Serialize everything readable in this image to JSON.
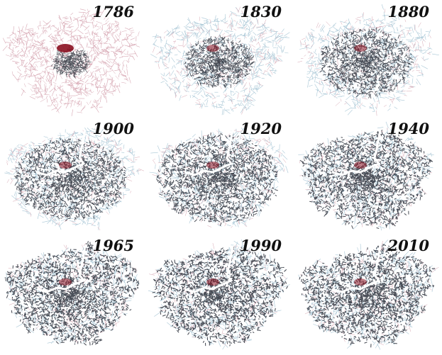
{
  "figure": {
    "panels": [
      {
        "year": "1786",
        "density": 0.15
      },
      {
        "year": "1830",
        "density": 0.35
      },
      {
        "year": "1880",
        "density": 0.5
      },
      {
        "year": "1900",
        "density": 0.62
      },
      {
        "year": "1920",
        "density": 0.7
      },
      {
        "year": "1940",
        "density": 0.8
      },
      {
        "year": "1965",
        "density": 0.88
      },
      {
        "year": "1990",
        "density": 0.94
      },
      {
        "year": "2010",
        "density": 0.97
      }
    ],
    "colors": {
      "street_light": "#a9c7d6",
      "street_pink": "#d7a7b3",
      "street_dark": "#2a2f3a",
      "core_red": "#8b1020",
      "river": "#ffffff"
    }
  }
}
